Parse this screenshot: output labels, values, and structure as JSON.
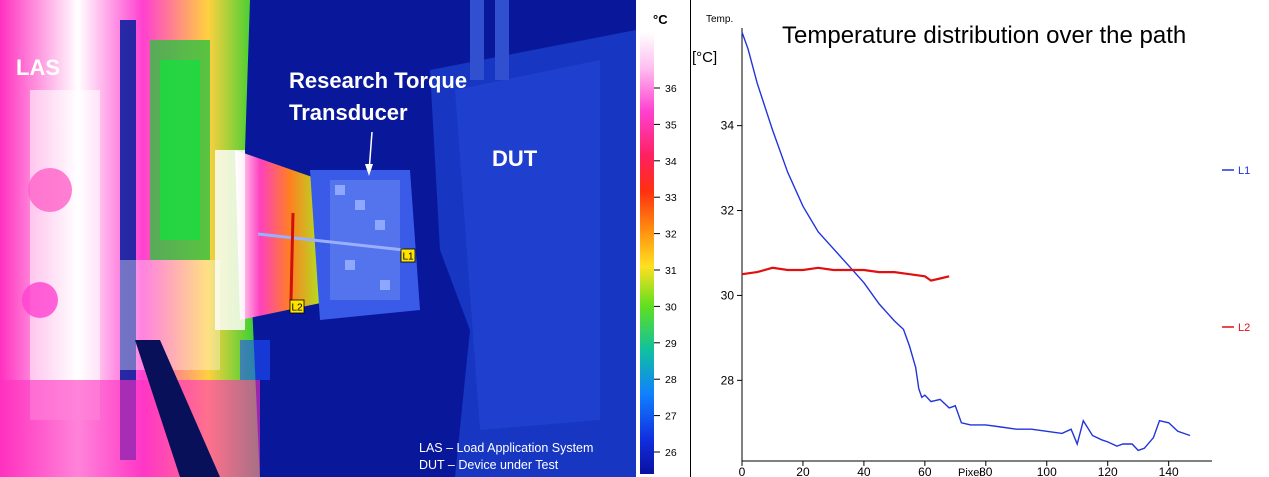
{
  "thermal": {
    "labels": {
      "las": "LAS",
      "rtt_line1": "Research Torque",
      "rtt_line2": "Transducer",
      "dut": "DUT"
    },
    "markers": {
      "l1": "L1",
      "l2": "L2"
    },
    "legend": {
      "line1": "LAS – Load Application System",
      "line2": "DUT – Device under Test"
    },
    "colorbar": {
      "unit": "°C",
      "ticks": [
        "36",
        "35",
        "34",
        "33",
        "32",
        "31",
        "30",
        "29",
        "28",
        "27",
        "26"
      ]
    }
  },
  "chart_data": {
    "type": "line",
    "title": "Temperature distribution over the path",
    "ylabel_top": "Temp.",
    "ylabel_unit": "[°C]",
    "xlabel": "Pixel",
    "xlim": [
      0,
      147
    ],
    "ylim": [
      26.1,
      36.3
    ],
    "xticks": [
      0,
      20,
      40,
      60,
      80,
      100,
      120,
      140
    ],
    "yticks": [
      28,
      30,
      32,
      34
    ],
    "grid": false,
    "legend_position": "right",
    "series": [
      {
        "name": "L1",
        "color": "#2233dd",
        "x": [
          0,
          2,
          5,
          10,
          15,
          20,
          25,
          30,
          35,
          40,
          45,
          50,
          53,
          55,
          57,
          58,
          59,
          60,
          62,
          65,
          68,
          70,
          72,
          75,
          80,
          85,
          90,
          95,
          100,
          105,
          108,
          110,
          112,
          115,
          118,
          120,
          123,
          125,
          128,
          130,
          132,
          135,
          137,
          140,
          143,
          145,
          147
        ],
        "y": [
          36.2,
          35.8,
          35.0,
          33.9,
          32.9,
          32.1,
          31.5,
          31.1,
          30.7,
          30.3,
          29.8,
          29.4,
          29.2,
          28.8,
          28.3,
          27.8,
          27.6,
          27.65,
          27.5,
          27.55,
          27.35,
          27.4,
          27.0,
          26.95,
          26.95,
          26.9,
          26.85,
          26.85,
          26.8,
          26.75,
          26.85,
          26.5,
          27.05,
          26.7,
          26.6,
          26.55,
          26.45,
          26.5,
          26.5,
          26.35,
          26.4,
          26.65,
          27.05,
          27.0,
          26.8,
          26.75,
          26.7
        ]
      },
      {
        "name": "L2",
        "color": "#e01010",
        "x": [
          0,
          5,
          10,
          15,
          20,
          25,
          30,
          35,
          40,
          45,
          50,
          55,
          60,
          62,
          65,
          68
        ],
        "y": [
          30.5,
          30.55,
          30.65,
          30.6,
          30.6,
          30.65,
          30.6,
          30.6,
          30.6,
          30.55,
          30.55,
          30.5,
          30.45,
          30.35,
          30.4,
          30.45
        ]
      }
    ]
  }
}
